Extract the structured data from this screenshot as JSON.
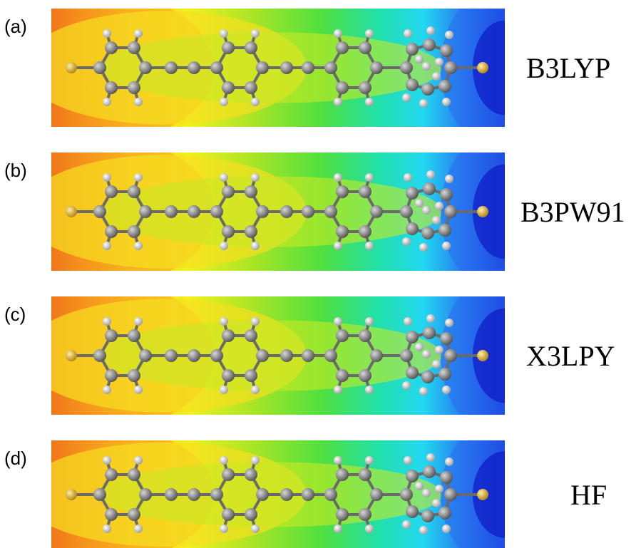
{
  "panels": [
    {
      "label": "(a)",
      "method": "B3LYP"
    },
    {
      "label": "(b)",
      "method": "B3PW91"
    },
    {
      "label": "(c)",
      "method": "X3LPY"
    },
    {
      "label": "(d)",
      "method": "HF"
    }
  ]
}
